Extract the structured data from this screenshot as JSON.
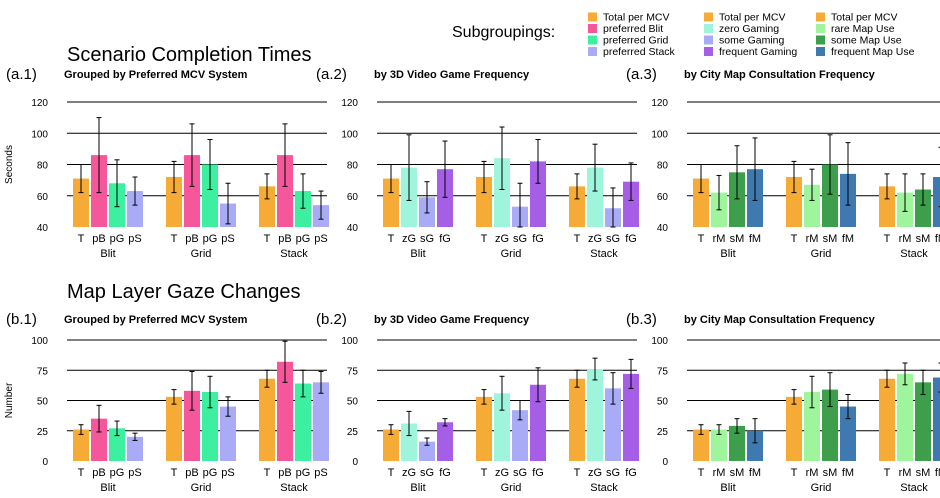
{
  "legend": {
    "title": "Subgroupings:",
    "columns": [
      [
        {
          "label": "Total per MCV",
          "color": "#f5ab35"
        },
        {
          "label": "preferred Blit",
          "color": "#f5579a"
        },
        {
          "label": "preferred Grid",
          "color": "#3cf0a0"
        },
        {
          "label": "preferred Stack",
          "color": "#a9abf7"
        }
      ],
      [
        {
          "label": "Total per MCV",
          "color": "#f5ab35"
        },
        {
          "label": "zero Gaming",
          "color": "#9ef5dc"
        },
        {
          "label": "some Gaming",
          "color": "#a9abf7"
        },
        {
          "label": "frequent Gaming",
          "color": "#a65ee6"
        }
      ],
      [
        {
          "label": "Total per MCV",
          "color": "#f5ab35"
        },
        {
          "label": "rare Map Use",
          "color": "#9ef59b"
        },
        {
          "label": "some Map Use",
          "color": "#3d9e4c"
        },
        {
          "label": "frequent Map Use",
          "color": "#3e7ab0"
        }
      ]
    ]
  },
  "sections": [
    {
      "title": "Scenario Completion Times",
      "ylabel": "Seconds"
    },
    {
      "title": "Map Layer Gaze Changes",
      "ylabel": "Number"
    }
  ],
  "chart_data": [
    {
      "type": "bar",
      "id": "a1",
      "section": 0,
      "tag": "(a.1)",
      "title": "Grouped by Preferred MCV System",
      "ylabel": "Seconds",
      "ylim": [
        40,
        120
      ],
      "yticks": [
        40,
        60,
        80,
        100,
        120
      ],
      "groups": [
        "Blit",
        "Grid",
        "Stack"
      ],
      "bar_labels": [
        "T",
        "pB",
        "pG",
        "pS"
      ],
      "series": [
        {
          "name": "Total per MCV",
          "color": "#f5ab35",
          "values": [
            71,
            72,
            66
          ],
          "err": [
            9,
            10,
            8
          ]
        },
        {
          "name": "preferred Blit",
          "color": "#f5579a",
          "values": [
            86,
            86,
            86
          ],
          "err": [
            24,
            20,
            20
          ]
        },
        {
          "name": "preferred Grid",
          "color": "#3cf0a0",
          "values": [
            68,
            80,
            63
          ],
          "err": [
            15,
            16,
            11
          ]
        },
        {
          "name": "preferred Stack",
          "color": "#a9abf7",
          "values": [
            63,
            55,
            54
          ],
          "err": [
            9,
            13,
            9
          ]
        }
      ]
    },
    {
      "type": "bar",
      "id": "a2",
      "section": 0,
      "tag": "(a.2)",
      "title": "by 3D Video Game Frequency",
      "ylabel": "",
      "ylim": [
        40,
        120
      ],
      "yticks": [
        40,
        60,
        80,
        100,
        120
      ],
      "groups": [
        "Blit",
        "Grid",
        "Stack"
      ],
      "bar_labels": [
        "T",
        "zG",
        "sG",
        "fG"
      ],
      "series": [
        {
          "name": "Total per MCV",
          "color": "#f5ab35",
          "values": [
            71,
            72,
            66
          ],
          "err": [
            9,
            10,
            8
          ]
        },
        {
          "name": "zero Gaming",
          "color": "#9ef5dc",
          "values": [
            78,
            84,
            78
          ],
          "err": [
            21,
            20,
            15
          ]
        },
        {
          "name": "some Gaming",
          "color": "#a9abf7",
          "values": [
            59,
            53,
            52
          ],
          "err": [
            10,
            15,
            13
          ]
        },
        {
          "name": "frequent Gaming",
          "color": "#a65ee6",
          "values": [
            77,
            82,
            69
          ],
          "err": [
            18,
            14,
            12
          ]
        }
      ]
    },
    {
      "type": "bar",
      "id": "a3",
      "section": 0,
      "tag": "(a.3)",
      "title": "by City Map Consultation Frequency",
      "ylabel": "",
      "ylim": [
        40,
        120
      ],
      "yticks": [
        40,
        60,
        80,
        100,
        120
      ],
      "groups": [
        "Blit",
        "Grid",
        "Stack"
      ],
      "bar_labels": [
        "T",
        "rM",
        "sM",
        "fM"
      ],
      "series": [
        {
          "name": "Total per MCV",
          "color": "#f5ab35",
          "values": [
            71,
            72,
            66
          ],
          "err": [
            9,
            10,
            8
          ]
        },
        {
          "name": "rare Map Use",
          "color": "#9ef59b",
          "values": [
            62,
            67,
            62
          ],
          "err": [
            11,
            10,
            12
          ]
        },
        {
          "name": "some Map Use",
          "color": "#3d9e4c",
          "values": [
            75,
            80,
            64
          ],
          "err": [
            17,
            19,
            10
          ]
        },
        {
          "name": "frequent Map Use",
          "color": "#3e7ab0",
          "values": [
            77,
            74,
            72
          ],
          "err": [
            20,
            20,
            19
          ]
        }
      ]
    },
    {
      "type": "bar",
      "id": "b1",
      "section": 1,
      "tag": "(b.1)",
      "title": "Grouped by Preferred MCV System",
      "ylabel": "Number",
      "ylim": [
        0,
        100
      ],
      "yticks": [
        0,
        25,
        50,
        75,
        100
      ],
      "groups": [
        "Blit",
        "Grid",
        "Stack"
      ],
      "bar_labels": [
        "T",
        "pB",
        "pG",
        "pS"
      ],
      "series": [
        {
          "name": "Total per MCV",
          "color": "#f5ab35",
          "values": [
            26,
            53,
            68
          ],
          "err": [
            4,
            6,
            7
          ]
        },
        {
          "name": "preferred Blit",
          "color": "#f5579a",
          "values": [
            35,
            58,
            82
          ],
          "err": [
            11,
            16,
            17
          ]
        },
        {
          "name": "preferred Grid",
          "color": "#3cf0a0",
          "values": [
            27,
            57,
            64
          ],
          "err": [
            6,
            13,
            11
          ]
        },
        {
          "name": "preferred Stack",
          "color": "#a9abf7",
          "values": [
            20,
            45,
            65
          ],
          "err": [
            3,
            8,
            9
          ]
        }
      ]
    },
    {
      "type": "bar",
      "id": "b2",
      "section": 1,
      "tag": "(b.2)",
      "title": "by 3D Video Game Frequency",
      "ylabel": "",
      "ylim": [
        0,
        100
      ],
      "yticks": [
        0,
        25,
        50,
        75,
        100
      ],
      "groups": [
        "Blit",
        "Grid",
        "Stack"
      ],
      "bar_labels": [
        "T",
        "zG",
        "sG",
        "fG"
      ],
      "series": [
        {
          "name": "Total per MCV",
          "color": "#f5ab35",
          "values": [
            26,
            53,
            68
          ],
          "err": [
            4,
            6,
            7
          ]
        },
        {
          "name": "zero Gaming",
          "color": "#9ef5dc",
          "values": [
            31,
            56,
            76
          ],
          "err": [
            10,
            14,
            9
          ]
        },
        {
          "name": "some Gaming",
          "color": "#a9abf7",
          "values": [
            16,
            42,
            60
          ],
          "err": [
            3,
            8,
            13
          ]
        },
        {
          "name": "frequent Gaming",
          "color": "#a65ee6",
          "values": [
            32,
            63,
            72
          ],
          "err": [
            3,
            14,
            12
          ]
        }
      ]
    },
    {
      "type": "bar",
      "id": "b3",
      "section": 1,
      "tag": "(b.3)",
      "title": "by City Map Consultation Frequency",
      "ylabel": "",
      "ylim": [
        0,
        100
      ],
      "yticks": [
        0,
        25,
        50,
        75,
        100
      ],
      "groups": [
        "Blit",
        "Grid",
        "Stack"
      ],
      "bar_labels": [
        "T",
        "rM",
        "sM",
        "fM"
      ],
      "series": [
        {
          "name": "Total per MCV",
          "color": "#f5ab35",
          "values": [
            26,
            53,
            68
          ],
          "err": [
            4,
            6,
            7
          ]
        },
        {
          "name": "rare Map Use",
          "color": "#9ef59b",
          "values": [
            26,
            57,
            72
          ],
          "err": [
            4,
            13,
            9
          ]
        },
        {
          "name": "some Map Use",
          "color": "#3d9e4c",
          "values": [
            29,
            59,
            65
          ],
          "err": [
            6,
            14,
            10
          ]
        },
        {
          "name": "frequent Map Use",
          "color": "#3e7ab0",
          "values": [
            25,
            45,
            69
          ],
          "err": [
            10,
            10,
            12
          ]
        }
      ]
    }
  ]
}
